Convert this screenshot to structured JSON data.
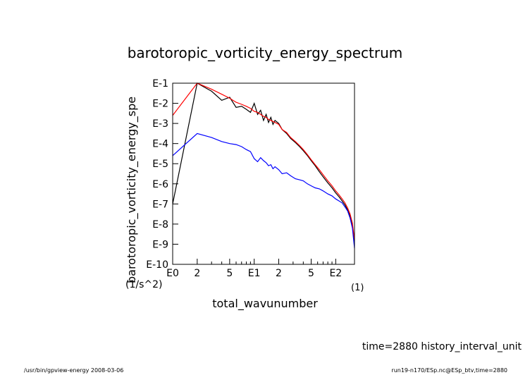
{
  "chart_data": {
    "type": "line",
    "title": "barotoropic_vorticity_energy_spectrum",
    "xlabel": "total_wavunumber",
    "xunit": "(1)",
    "ylabel": "barotoropic_vorticity_energy_spe",
    "yunit": "(1/s^2)",
    "xscale": "log",
    "yscale": "log",
    "xlim": [
      1,
      170
    ],
    "ylim": [
      1e-10,
      0.1
    ],
    "x_ticks": [
      {
        "value": 1,
        "label": "E0"
      },
      {
        "value": 2,
        "label": "2"
      },
      {
        "value": 5,
        "label": "5"
      },
      {
        "value": 10,
        "label": "E1"
      },
      {
        "value": 20,
        "label": "2"
      },
      {
        "value": 50,
        "label": "5"
      },
      {
        "value": 100,
        "label": "E2"
      }
    ],
    "y_ticks": [
      {
        "value": 0.1,
        "label": "E-1"
      },
      {
        "value": 0.01,
        "label": "E-2"
      },
      {
        "value": 0.001,
        "label": "E-3"
      },
      {
        "value": 0.0001,
        "label": "E-4"
      },
      {
        "value": 1e-05,
        "label": "E-5"
      },
      {
        "value": 1e-06,
        "label": "E-6"
      },
      {
        "value": 1e-07,
        "label": "E-7"
      },
      {
        "value": 1e-08,
        "label": "E-8"
      },
      {
        "value": 1e-09,
        "label": "E-9"
      },
      {
        "value": 1e-10,
        "label": "E-10"
      }
    ],
    "grid": false,
    "legend": "none",
    "series": [
      {
        "color": "#000000",
        "x": [
          1,
          2,
          3,
          4,
          5,
          6,
          7,
          8,
          9,
          10,
          11,
          12,
          13,
          14,
          15,
          16,
          17,
          18,
          20,
          22,
          25,
          28,
          32,
          36,
          40,
          45,
          50,
          56,
          63,
          70,
          80,
          90,
          100,
          110,
          120,
          130,
          140,
          150,
          160,
          170
        ],
        "log10_y": [
          -7.0,
          -1.0,
          -1.4,
          -1.85,
          -1.7,
          -2.2,
          -2.15,
          -2.3,
          -2.45,
          -2.0,
          -2.55,
          -2.35,
          -2.85,
          -2.55,
          -2.95,
          -2.7,
          -3.05,
          -2.85,
          -3.0,
          -3.3,
          -3.5,
          -3.75,
          -3.95,
          -4.15,
          -4.35,
          -4.6,
          -4.85,
          -5.1,
          -5.4,
          -5.65,
          -5.95,
          -6.2,
          -6.45,
          -6.65,
          -6.85,
          -7.05,
          -7.3,
          -7.6,
          -8.1,
          -9.0
        ]
      },
      {
        "color": "#ff0000",
        "x": [
          1,
          2,
          3,
          4,
          5,
          6,
          7,
          8,
          9,
          10,
          11,
          12,
          13,
          14,
          15,
          16,
          17,
          18,
          20,
          22,
          25,
          28,
          32,
          36,
          40,
          45,
          50,
          56,
          63,
          70,
          80,
          90,
          100,
          110,
          120,
          130,
          140,
          150,
          160,
          170
        ],
        "log10_y": [
          -2.6,
          -1.0,
          -1.3,
          -1.55,
          -1.75,
          -1.95,
          -2.05,
          -2.15,
          -2.25,
          -2.4,
          -2.45,
          -2.55,
          -2.65,
          -2.7,
          -2.8,
          -2.85,
          -2.9,
          -2.95,
          -3.05,
          -3.3,
          -3.45,
          -3.7,
          -3.9,
          -4.1,
          -4.3,
          -4.55,
          -4.8,
          -5.05,
          -5.3,
          -5.55,
          -5.85,
          -6.1,
          -6.35,
          -6.55,
          -6.75,
          -6.95,
          -7.2,
          -7.5,
          -7.95,
          -8.8
        ]
      },
      {
        "color": "#0000ff",
        "x": [
          1,
          2,
          3,
          4,
          5,
          6,
          7,
          8,
          9,
          10,
          11,
          12,
          13,
          14,
          15,
          16,
          17,
          18,
          20,
          22,
          25,
          28,
          32,
          36,
          40,
          45,
          50,
          56,
          63,
          70,
          80,
          90,
          100,
          110,
          120,
          130,
          140,
          150,
          160,
          170
        ],
        "log10_y": [
          -4.6,
          -3.5,
          -3.7,
          -3.9,
          -4.0,
          -4.05,
          -4.15,
          -4.3,
          -4.4,
          -4.75,
          -4.9,
          -4.7,
          -4.85,
          -4.95,
          -5.1,
          -5.05,
          -5.25,
          -5.15,
          -5.3,
          -5.5,
          -5.45,
          -5.6,
          -5.75,
          -5.8,
          -5.85,
          -6.0,
          -6.1,
          -6.2,
          -6.25,
          -6.35,
          -6.5,
          -6.6,
          -6.75,
          -6.85,
          -6.95,
          -7.15,
          -7.35,
          -7.7,
          -8.2,
          -9.2
        ]
      }
    ]
  },
  "annotations": {
    "time_label": "time=2880 history_interval_unit",
    "footer_left": "/usr/bin/gpview-energy  2008-03-06",
    "footer_right": "run19-n170/ESp.nc@ESp_btv,time=2880"
  }
}
